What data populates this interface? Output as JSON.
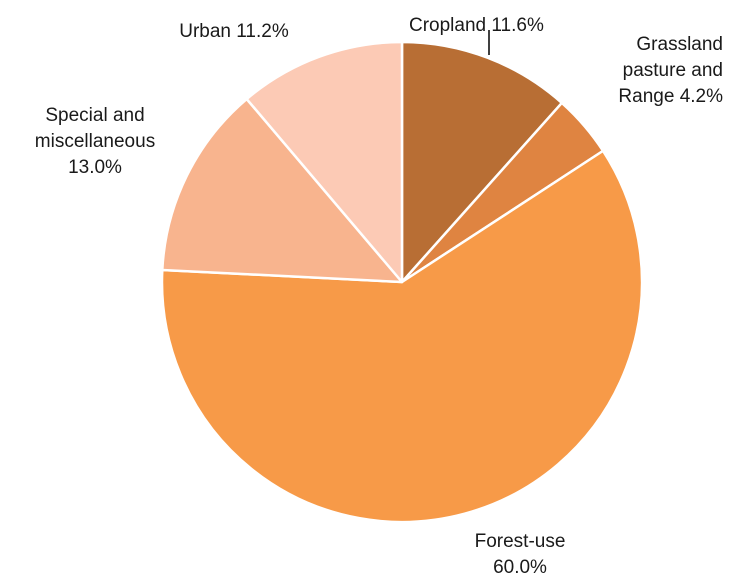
{
  "chart_data": {
    "type": "pie",
    "title": "",
    "slices": [
      {
        "label": "Cropland",
        "value": 11.6,
        "value_label": "11.6%",
        "color": "#b86e34",
        "label_lines": [
          "Cropland 11.6%"
        ]
      },
      {
        "label": "Grassland pasture and Range",
        "value": 4.2,
        "value_label": "4.2%",
        "color": "#df8441",
        "label_lines": [
          "Grassland",
          "pasture and",
          "Range 4.2%"
        ]
      },
      {
        "label": "Forest-use",
        "value": 60.0,
        "value_label": "60.0%",
        "color": "#f79a48",
        "label_lines": [
          "Forest-use",
          "60.0%"
        ]
      },
      {
        "label": "Special and miscellaneous",
        "value": 13.0,
        "value_label": "13.0%",
        "color": "#f8b48e",
        "label_lines": [
          "Special and",
          "miscellaneous",
          "13.0%"
        ]
      },
      {
        "label": "Urban",
        "value": 11.2,
        "value_label": "11.2%",
        "color": "#fccab5",
        "label_lines": [
          "Urban 11.2%"
        ]
      }
    ],
    "start_angle_deg": 0,
    "direction": "clockwise",
    "legend": "none",
    "data_labels": "outside"
  }
}
